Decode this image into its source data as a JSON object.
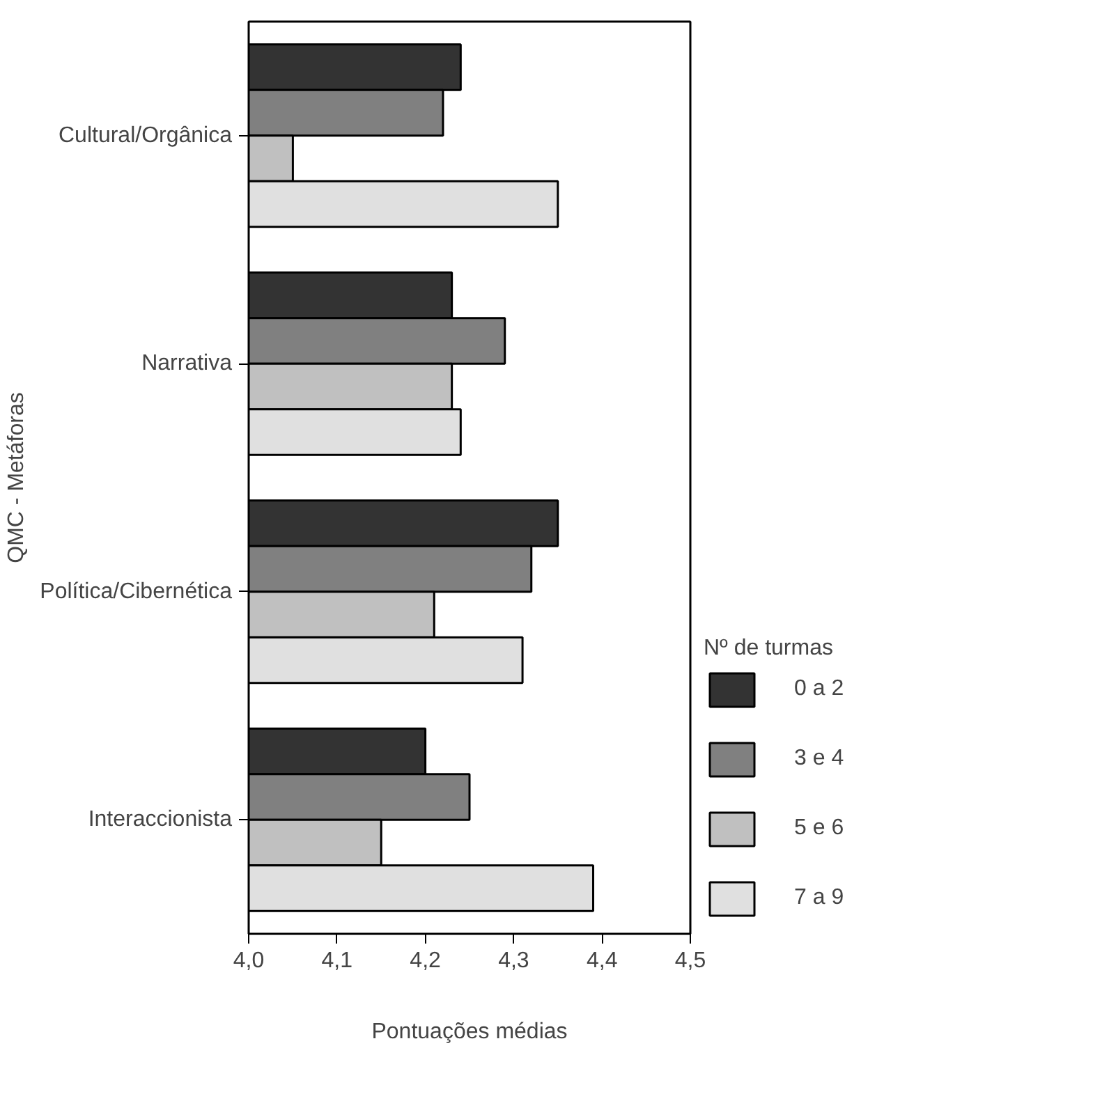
{
  "chart_data": {
    "type": "bar",
    "orientation": "horizontal",
    "xlabel": "Pontuações médias",
    "ylabel": "QMC - Metáforas",
    "legend_title": "Nº de turmas",
    "legend": "right",
    "categories": [
      "Cultural/Orgânica",
      "Narrativa",
      "Política/Cibernética",
      "Interaccionista"
    ],
    "series": [
      {
        "name": "0 a 2",
        "color": "#333333",
        "values": [
          4.24,
          4.23,
          4.35,
          4.2
        ]
      },
      {
        "name": "3 e 4",
        "color": "#808080",
        "values": [
          4.22,
          4.29,
          4.32,
          4.25
        ]
      },
      {
        "name": "5 e 6",
        "color": "#c0c0c0",
        "values": [
          4.05,
          4.23,
          4.21,
          4.15
        ]
      },
      {
        "name": "7 a 9",
        "color": "#e0e0e0",
        "values": [
          4.35,
          4.24,
          4.31,
          4.39
        ]
      }
    ],
    "xlim": [
      4.0,
      4.5
    ],
    "xticks": [
      {
        "value": 4.0,
        "label": "4,0"
      },
      {
        "value": 4.1,
        "label": "4,1"
      },
      {
        "value": 4.2,
        "label": "4,2"
      },
      {
        "value": 4.3,
        "label": "4,3"
      },
      {
        "value": 4.4,
        "label": "4,4"
      },
      {
        "value": 4.5,
        "label": "4,5"
      }
    ],
    "grid": false
  }
}
